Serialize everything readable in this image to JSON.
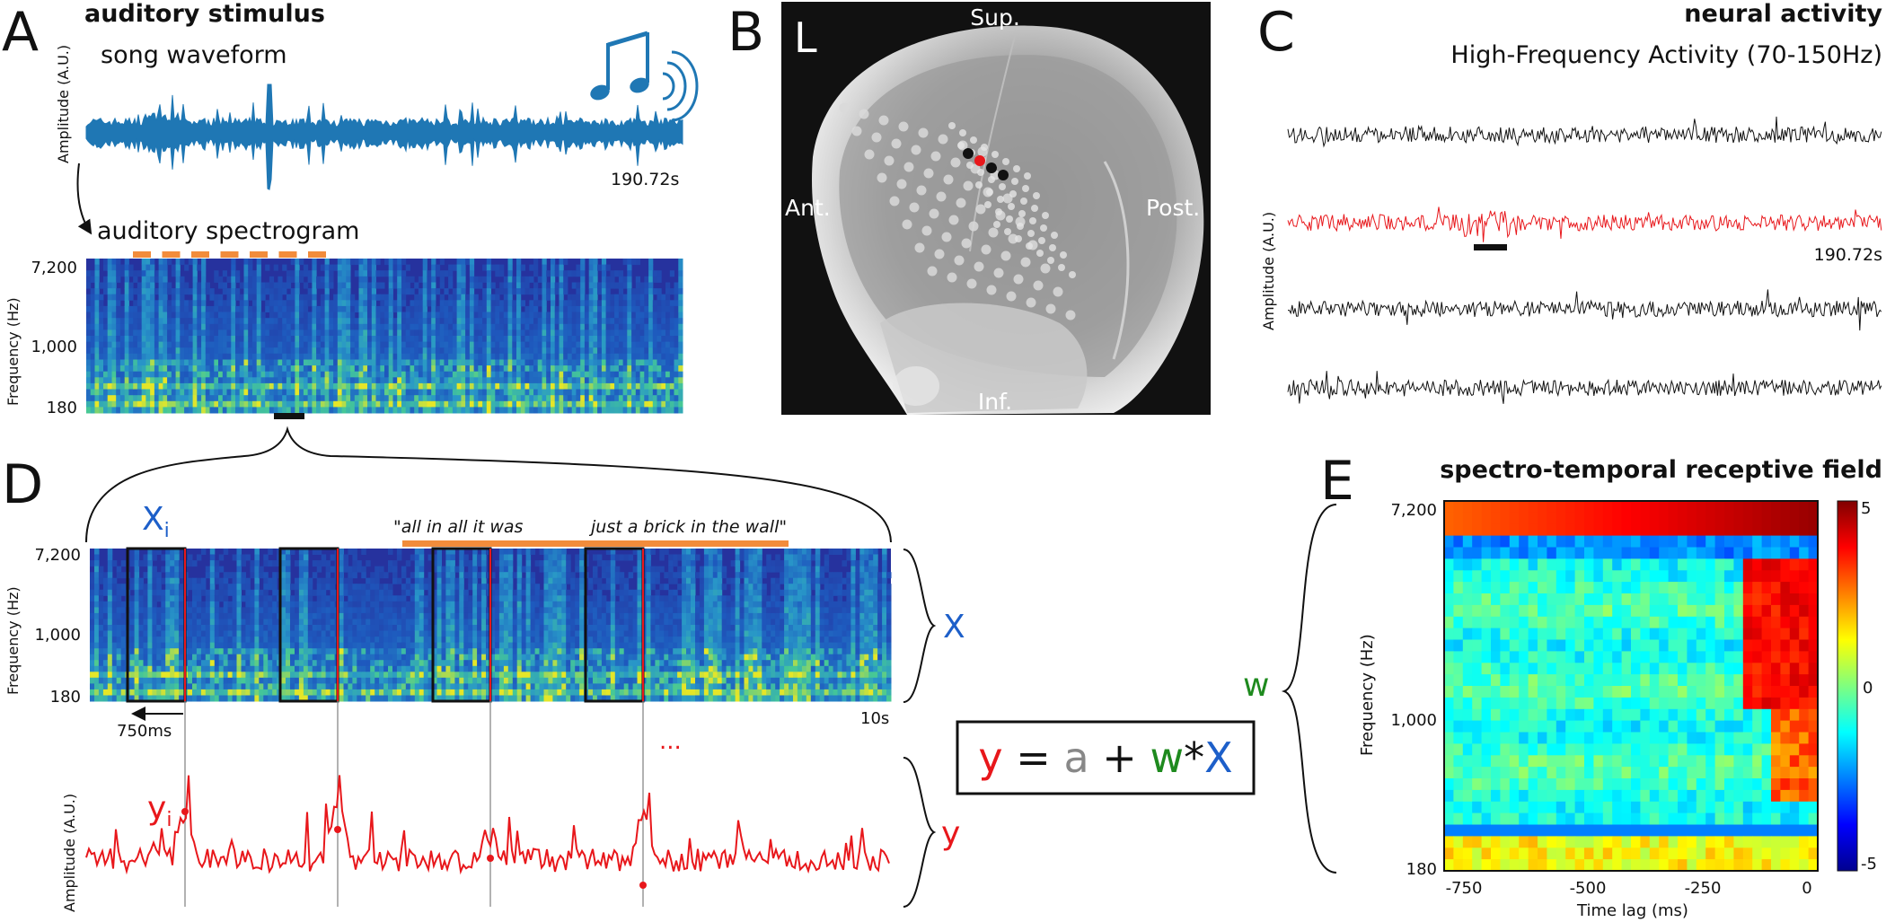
{
  "panels": {
    "A": {
      "letter": "A",
      "title": "auditory stimulus",
      "waveform_label": "song waveform",
      "waveform_ylabel": "Amplitude (A.U.)",
      "waveform_duration": "190.72s",
      "spectrogram_label": "auditory spectrogram",
      "spectrogram_ylabel": "Frequency (Hz)",
      "freq_ticks": [
        "7,200",
        "1,000",
        "180"
      ]
    },
    "B": {
      "letter": "B",
      "hemisphere": "L",
      "superior": "Sup.",
      "inferior": "Inf.",
      "anterior": "Ant.",
      "posterior": "Post."
    },
    "C": {
      "letter": "C",
      "title": "neural activity",
      "subtitle": "High-Frequency Activity (70-150Hz)",
      "ylabel": "Amplitude (A.U.)",
      "duration": "190.72s"
    },
    "D": {
      "letter": "D",
      "xi_label": "X",
      "xi_sub": "i",
      "lyric_1": "\"all in all it was",
      "lyric_2": "just a brick in the wall\"",
      "spectrogram_ylabel": "Frequency (Hz)",
      "freq_ticks": [
        "7,200",
        "1,000",
        "180"
      ],
      "window_label": "750ms",
      "duration": "10s",
      "x_brace_label": "X",
      "yi_label": "y",
      "yi_sub": "i",
      "ellipsis": "...",
      "y_brace_label": "y",
      "response_ylabel": "Amplitude (A.U.)",
      "equation": {
        "y": "y",
        "eq": "=",
        "a": "a",
        "plus": "+",
        "w": "w",
        "star": "*",
        "X": "X"
      },
      "colors": {
        "y": "#e8171b",
        "a": "#888888",
        "w": "#1e8a1e",
        "X": "#1d5fc9",
        "black": "#111111"
      }
    },
    "E": {
      "letter": "E",
      "title": "spectro-temporal receptive field",
      "w_label": "w",
      "ylabel": "Frequency (Hz)",
      "xlabel": "Time lag (ms)",
      "freq_ticks": [
        "7,200",
        "1,000",
        "180"
      ],
      "x_ticks": [
        "-750",
        "-500",
        "-250",
        "0"
      ],
      "colorbar_ticks": [
        "5",
        "0",
        "-5"
      ]
    }
  },
  "colors": {
    "waveform": "#1f77b4",
    "music_icon": "#1f77b4",
    "response": "#e8171b",
    "marker": "#f28c3b",
    "electrode_grid": "#d9d9d9",
    "electrode_highlight": "#e8171b"
  },
  "icons": {
    "music": "music-note-icon",
    "sound": "sound-waves-icon"
  }
}
